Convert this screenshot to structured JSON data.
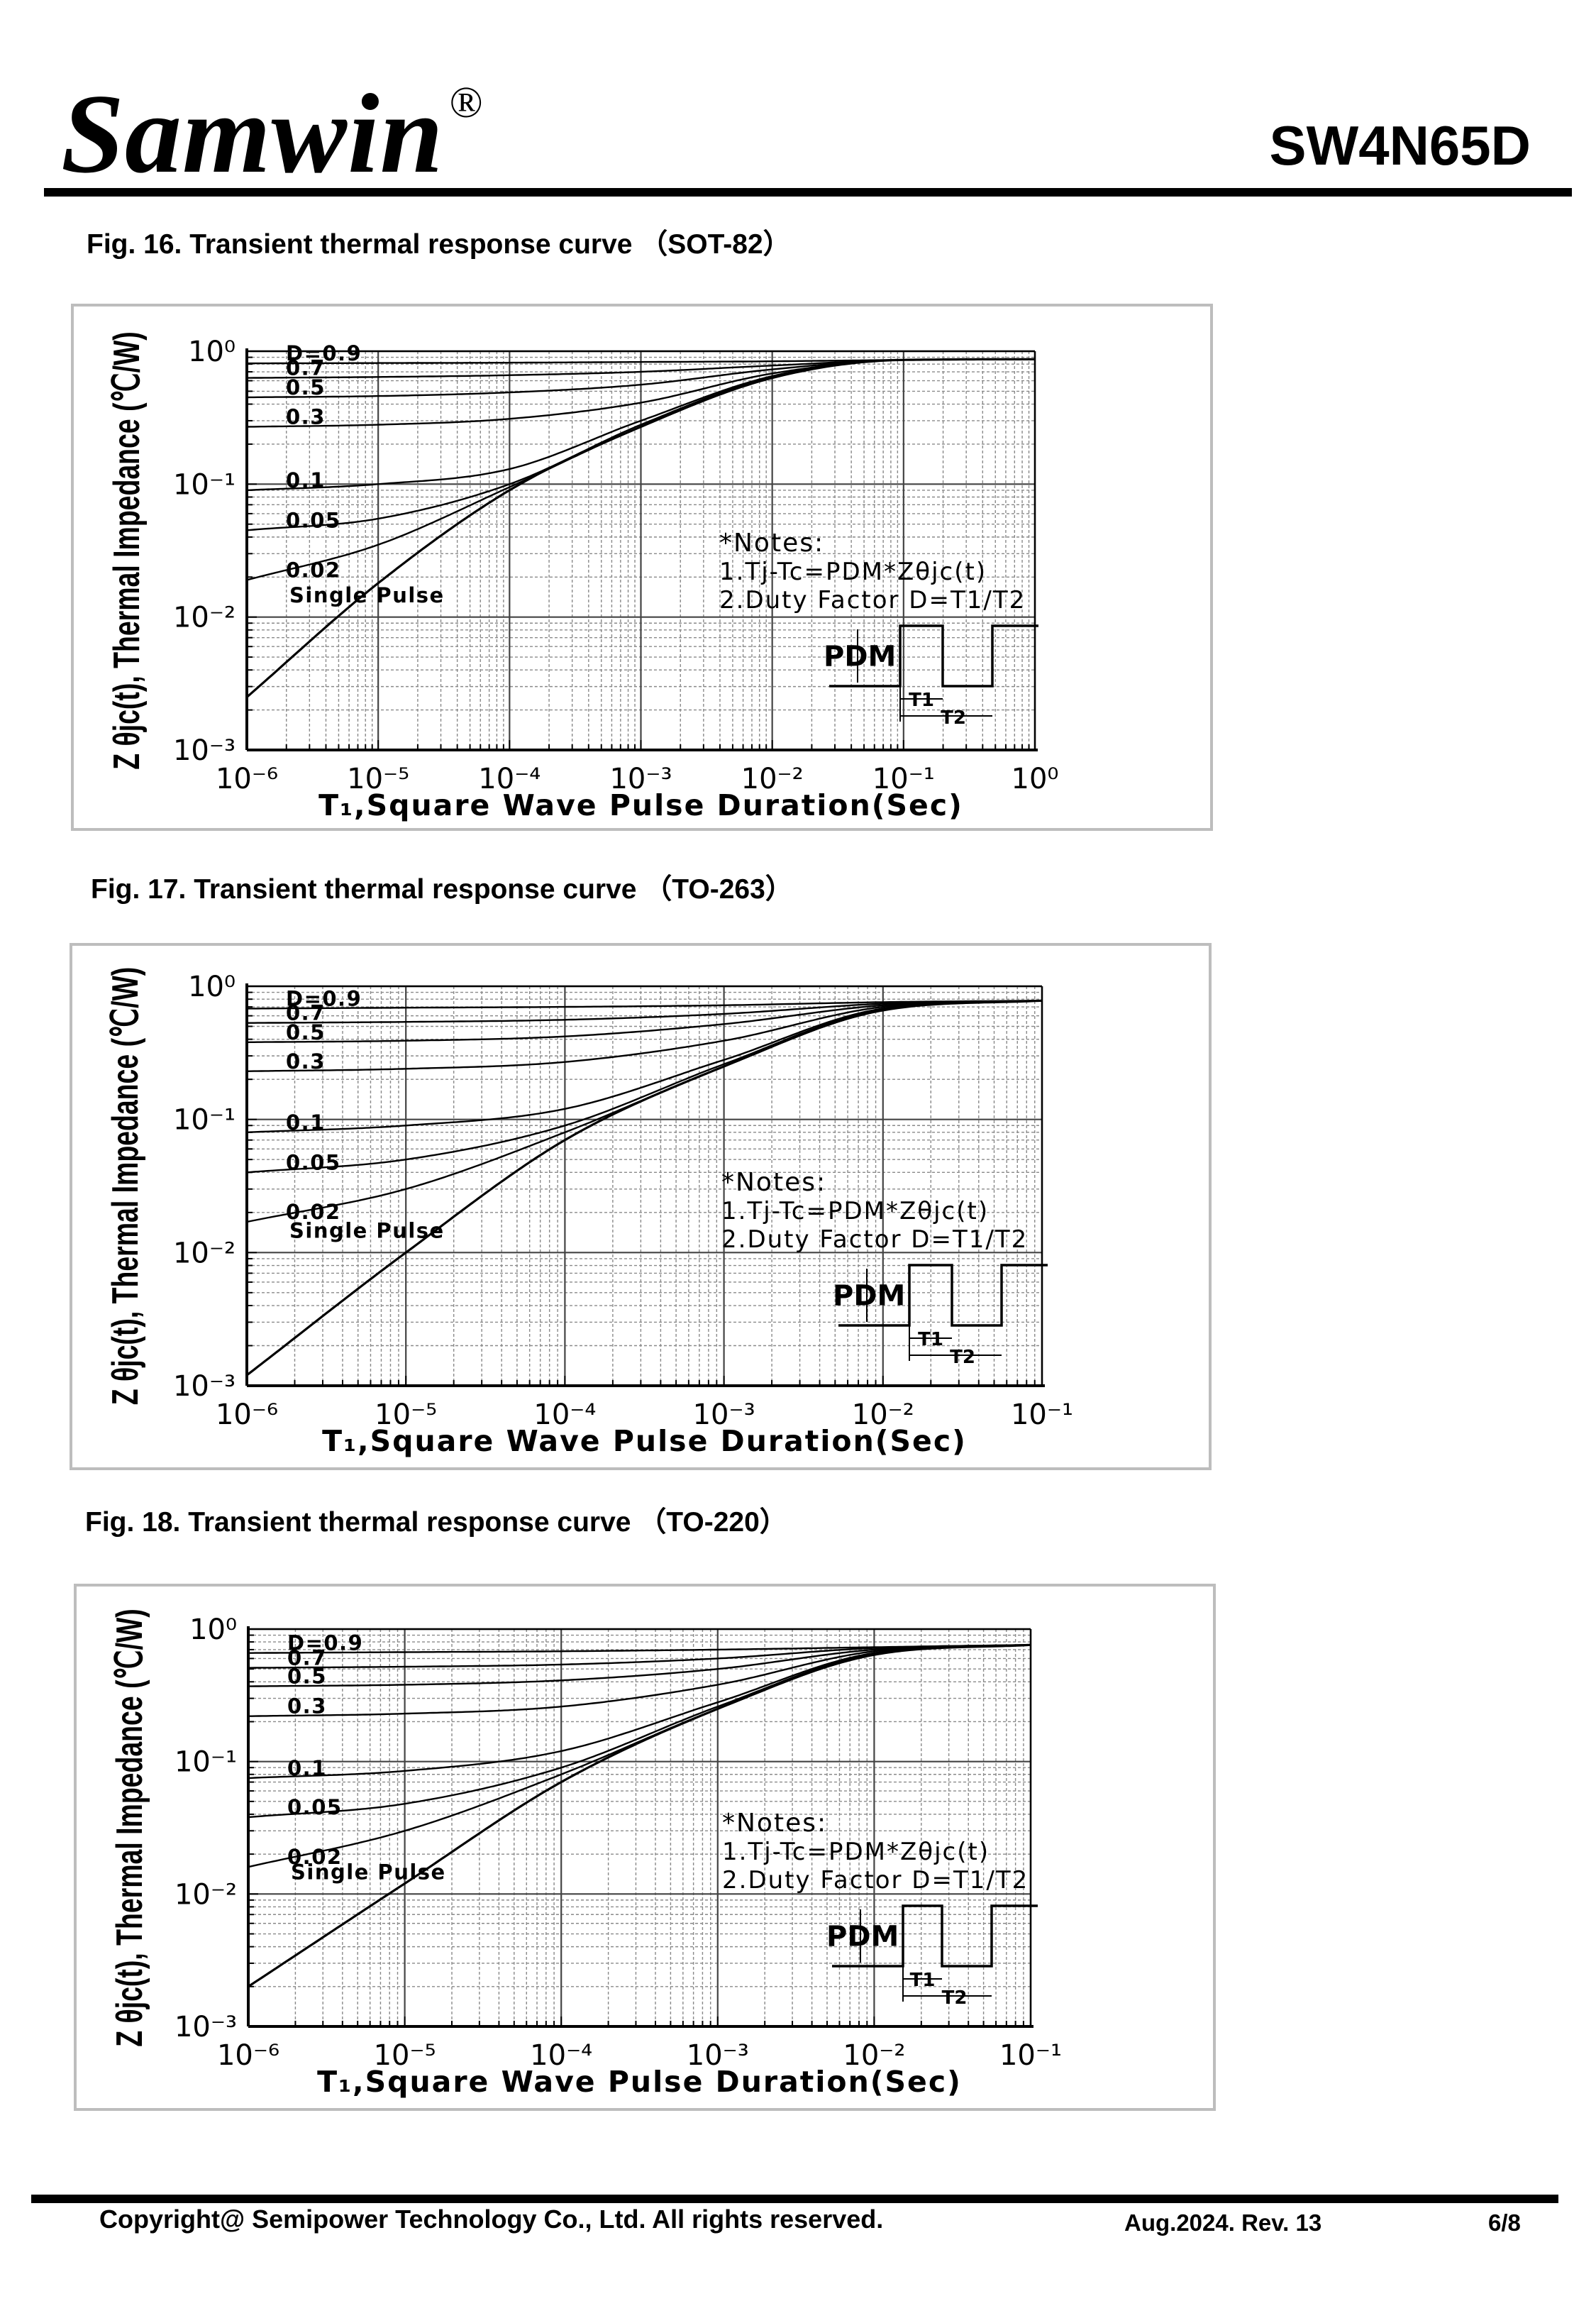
{
  "header": {
    "brand": "Samwin",
    "registered": "®",
    "part_number": "SW4N65D"
  },
  "figures": [
    {
      "caption": "Fig. 16. Transient thermal response curve （SOT-82）"
    },
    {
      "caption": "Fig. 17. Transient thermal response curve （TO-263）"
    },
    {
      "caption": "Fig. 18. Transient thermal response curve （TO-220）"
    }
  ],
  "footer": {
    "copyright": "Copyright@ Semipower Technology Co., Ltd. All rights reserved.",
    "date_rev": "Aug.2024. Rev. 13",
    "page": "6/8"
  },
  "chart_data": [
    {
      "type": "line",
      "xscale": "log",
      "yscale": "log",
      "xlim": [
        1e-06,
        1
      ],
      "ylim": [
        0.001,
        1
      ],
      "xticks": [
        1e-06,
        1e-05,
        0.0001,
        0.001,
        0.01,
        0.1,
        1
      ],
      "yticks": [
        0.001,
        0.01,
        0.1,
        1
      ],
      "xlabel": "T₁,Square Wave Pulse Duration(Sec)",
      "ylabel": "Z θjc(t), Thermal Impedance (℃/W)",
      "grid": true,
      "series": [
        {
          "name": "D=0.9",
          "x": [
            1e-06,
            1e-05,
            0.0001,
            0.001,
            0.01,
            0.1,
            1
          ],
          "y": [
            0.81,
            0.815,
            0.82,
            0.83,
            0.84,
            0.86,
            0.87
          ]
        },
        {
          "name": "0.7",
          "x": [
            1e-06,
            1e-05,
            0.0001,
            0.001,
            0.01,
            0.1,
            1
          ],
          "y": [
            0.63,
            0.64,
            0.66,
            0.7,
            0.78,
            0.86,
            0.87
          ]
        },
        {
          "name": "0.5",
          "x": [
            1e-06,
            1e-05,
            0.0001,
            0.001,
            0.01,
            0.1,
            1
          ],
          "y": [
            0.45,
            0.46,
            0.49,
            0.56,
            0.73,
            0.86,
            0.87
          ]
        },
        {
          "name": "0.3",
          "x": [
            1e-06,
            1e-05,
            0.0001,
            0.001,
            0.01,
            0.1,
            1
          ],
          "y": [
            0.27,
            0.28,
            0.31,
            0.41,
            0.68,
            0.86,
            0.87
          ]
        },
        {
          "name": "0.1",
          "x": [
            1e-06,
            1e-05,
            0.0001,
            0.001,
            0.01,
            0.1,
            1
          ],
          "y": [
            0.09,
            0.1,
            0.13,
            0.3,
            0.65,
            0.86,
            0.87
          ]
        },
        {
          "name": "0.05",
          "x": [
            1e-06,
            1e-05,
            0.0001,
            0.001,
            0.01,
            0.1,
            1
          ],
          "y": [
            0.045,
            0.055,
            0.1,
            0.28,
            0.64,
            0.86,
            0.87
          ]
        },
        {
          "name": "0.02",
          "x": [
            1e-06,
            1e-05,
            0.0001,
            0.001,
            0.01,
            0.1,
            1
          ],
          "y": [
            0.019,
            0.035,
            0.095,
            0.27,
            0.63,
            0.86,
            0.87
          ]
        },
        {
          "name": "Single Pulse",
          "x": [
            1e-06,
            1e-05,
            0.0001,
            0.001,
            0.01,
            0.1,
            1
          ],
          "y": [
            0.0025,
            0.018,
            0.09,
            0.27,
            0.63,
            0.86,
            0.87
          ]
        }
      ],
      "labels": {
        "d09": "D=0.9",
        "d07": "0.7",
        "d05": "0.5",
        "d03": "0.3",
        "d01": "0.1",
        "d005": "0.05",
        "d002": "0.02",
        "single": "Single Pulse"
      },
      "notes": {
        "title": "*Notes:",
        "line1": "1.Tj-Tc=PDM*Zθjc(t)",
        "line2": "2.Duty Factor D=T1/T2",
        "pdm": "PDM",
        "t1": "T1",
        "t2": "T2"
      }
    },
    {
      "type": "line",
      "xscale": "log",
      "yscale": "log",
      "xlim": [
        1e-06,
        0.1
      ],
      "ylim": [
        0.001,
        1
      ],
      "xticks": [
        1e-06,
        1e-05,
        0.0001,
        0.001,
        0.01,
        0.1
      ],
      "yticks": [
        0.001,
        0.01,
        0.1,
        1
      ],
      "xlabel": "T₁,Square Wave Pulse Duration(Sec)",
      "ylabel": "Z θjc(t), Thermal Impedance (℃/W)",
      "grid": true,
      "series": [
        {
          "name": "D=0.9",
          "x": [
            1e-06,
            1e-05,
            0.0001,
            0.001,
            0.01,
            0.1
          ],
          "y": [
            0.68,
            0.69,
            0.7,
            0.72,
            0.76,
            0.78
          ]
        },
        {
          "name": "0.7",
          "x": [
            1e-06,
            1e-05,
            0.0001,
            0.001,
            0.01,
            0.1
          ],
          "y": [
            0.53,
            0.54,
            0.56,
            0.62,
            0.74,
            0.78
          ]
        },
        {
          "name": "0.5",
          "x": [
            1e-06,
            1e-05,
            0.0001,
            0.001,
            0.01,
            0.1
          ],
          "y": [
            0.38,
            0.39,
            0.42,
            0.52,
            0.72,
            0.78
          ]
        },
        {
          "name": "0.3",
          "x": [
            1e-06,
            1e-05,
            0.0001,
            0.001,
            0.01,
            0.1
          ],
          "y": [
            0.23,
            0.24,
            0.27,
            0.39,
            0.7,
            0.78
          ]
        },
        {
          "name": "0.1",
          "x": [
            1e-06,
            1e-05,
            0.0001,
            0.001,
            0.01,
            0.1
          ],
          "y": [
            0.08,
            0.09,
            0.12,
            0.28,
            0.68,
            0.78
          ]
        },
        {
          "name": "0.05",
          "x": [
            1e-06,
            1e-05,
            0.0001,
            0.001,
            0.01,
            0.1
          ],
          "y": [
            0.04,
            0.05,
            0.09,
            0.26,
            0.67,
            0.78
          ]
        },
        {
          "name": "0.02",
          "x": [
            1e-06,
            1e-05,
            0.0001,
            0.001,
            0.01,
            0.1
          ],
          "y": [
            0.017,
            0.03,
            0.08,
            0.25,
            0.66,
            0.78
          ]
        },
        {
          "name": "Single Pulse",
          "x": [
            1e-06,
            1e-05,
            0.0001,
            0.001,
            0.01,
            0.1
          ],
          "y": [
            0.0012,
            0.01,
            0.07,
            0.25,
            0.66,
            0.78
          ]
        }
      ],
      "labels": {
        "d09": "D=0.9",
        "d07": "0.7",
        "d05": "0.5",
        "d03": "0.3",
        "d01": "0.1",
        "d005": "0.05",
        "d002": "0.02",
        "single": "Single Pulse"
      },
      "notes": {
        "title": "*Notes:",
        "line1": "1.Tj-Tc=PDM*Zθjc(t)",
        "line2": "2.Duty Factor D=T1/T2",
        "pdm": "PDM",
        "t1": "T1",
        "t2": "T2"
      }
    },
    {
      "type": "line",
      "xscale": "log",
      "yscale": "log",
      "xlim": [
        1e-06,
        0.1
      ],
      "ylim": [
        0.001,
        1
      ],
      "xticks": [
        1e-06,
        1e-05,
        0.0001,
        0.001,
        0.01,
        0.1
      ],
      "yticks": [
        0.001,
        0.01,
        0.1,
        1
      ],
      "xlabel": "T₁,Square Wave Pulse Duration(Sec)",
      "ylabel": "Z θjc(t), Thermal Impedance (℃/W)",
      "grid": true,
      "series": [
        {
          "name": "D=0.9",
          "x": [
            1e-06,
            1e-05,
            0.0001,
            0.001,
            0.01,
            0.1
          ],
          "y": [
            0.66,
            0.67,
            0.68,
            0.7,
            0.73,
            0.76
          ]
        },
        {
          "name": "0.7",
          "x": [
            1e-06,
            1e-05,
            0.0001,
            0.001,
            0.01,
            0.1
          ],
          "y": [
            0.51,
            0.52,
            0.54,
            0.6,
            0.72,
            0.76
          ]
        },
        {
          "name": "0.5",
          "x": [
            1e-06,
            1e-05,
            0.0001,
            0.001,
            0.01,
            0.1
          ],
          "y": [
            0.37,
            0.38,
            0.41,
            0.5,
            0.7,
            0.76
          ]
        },
        {
          "name": "0.3",
          "x": [
            1e-06,
            1e-05,
            0.0001,
            0.001,
            0.01,
            0.1
          ],
          "y": [
            0.22,
            0.23,
            0.26,
            0.38,
            0.68,
            0.76
          ]
        },
        {
          "name": "0.1",
          "x": [
            1e-06,
            1e-05,
            0.0001,
            0.001,
            0.01,
            0.1
          ],
          "y": [
            0.075,
            0.085,
            0.12,
            0.28,
            0.66,
            0.76
          ]
        },
        {
          "name": "0.05",
          "x": [
            1e-06,
            1e-05,
            0.0001,
            0.001,
            0.01,
            0.1
          ],
          "y": [
            0.038,
            0.048,
            0.09,
            0.26,
            0.65,
            0.76
          ]
        },
        {
          "name": "0.02",
          "x": [
            1e-06,
            1e-05,
            0.0001,
            0.001,
            0.01,
            0.1
          ],
          "y": [
            0.016,
            0.03,
            0.08,
            0.25,
            0.64,
            0.76
          ]
        },
        {
          "name": "Single Pulse",
          "x": [
            1e-06,
            1e-05,
            0.0001,
            0.001,
            0.01,
            0.1
          ],
          "y": [
            0.002,
            0.012,
            0.07,
            0.25,
            0.64,
            0.76
          ]
        }
      ],
      "labels": {
        "d09": "D=0.9",
        "d07": "0.7",
        "d05": "0.5",
        "d03": "0.3",
        "d01": "0.1",
        "d005": "0.05",
        "d002": "0.02",
        "single": "Single Pulse"
      },
      "notes": {
        "title": "*Notes:",
        "line1": "1.Tj-Tc=PDM*Zθjc(t)",
        "line2": "2.Duty Factor D=T1/T2",
        "pdm": "PDM",
        "t1": "T1",
        "t2": "T2"
      }
    }
  ]
}
